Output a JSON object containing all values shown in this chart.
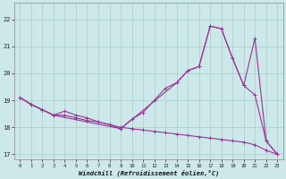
{
  "xlabel": "Windchill (Refroidissement éolien,°C)",
  "bg_color": "#cce8e8",
  "grid_color": "#aacccc",
  "line_color": "#993399",
  "xlim": [
    -0.5,
    23.5
  ],
  "ylim": [
    16.8,
    22.6
  ],
  "xticks": [
    0,
    1,
    2,
    3,
    4,
    5,
    6,
    7,
    8,
    9,
    10,
    11,
    12,
    13,
    14,
    15,
    16,
    17,
    18,
    19,
    20,
    21,
    22,
    23
  ],
  "yticks": [
    17,
    18,
    19,
    20,
    21,
    22
  ],
  "line1_x": [
    0,
    1,
    2,
    3,
    4,
    5,
    6,
    7,
    8,
    9,
    10,
    11,
    12,
    13,
    14,
    15,
    16,
    17,
    18,
    19,
    20,
    21,
    22,
    23
  ],
  "line1_y": [
    19.1,
    18.85,
    18.65,
    18.45,
    18.45,
    18.35,
    18.25,
    18.2,
    18.1,
    18.0,
    17.95,
    17.9,
    17.85,
    17.8,
    17.75,
    17.7,
    17.65,
    17.6,
    17.55,
    17.5,
    17.45,
    17.35,
    17.15,
    17.0
  ],
  "line2_x": [
    0,
    1,
    2,
    3,
    4,
    5,
    6,
    7,
    8,
    9,
    10,
    11,
    12,
    13,
    14,
    15,
    16,
    17,
    18,
    19,
    20,
    21,
    22,
    23
  ],
  "line2_y": [
    19.1,
    18.85,
    18.65,
    18.45,
    18.6,
    18.45,
    18.35,
    18.2,
    18.1,
    17.95,
    18.3,
    18.55,
    19.0,
    19.45,
    19.65,
    20.1,
    20.25,
    21.75,
    21.65,
    20.55,
    19.55,
    19.2,
    17.5,
    17.0
  ],
  "line3_x": [
    0,
    1,
    2,
    3,
    9,
    14,
    15,
    16,
    17,
    18,
    19,
    20,
    21,
    22,
    23
  ],
  "line3_y": [
    19.1,
    18.85,
    18.65,
    18.45,
    17.95,
    19.65,
    20.1,
    20.25,
    21.75,
    21.65,
    20.55,
    19.55,
    21.3,
    17.5,
    17.0
  ]
}
